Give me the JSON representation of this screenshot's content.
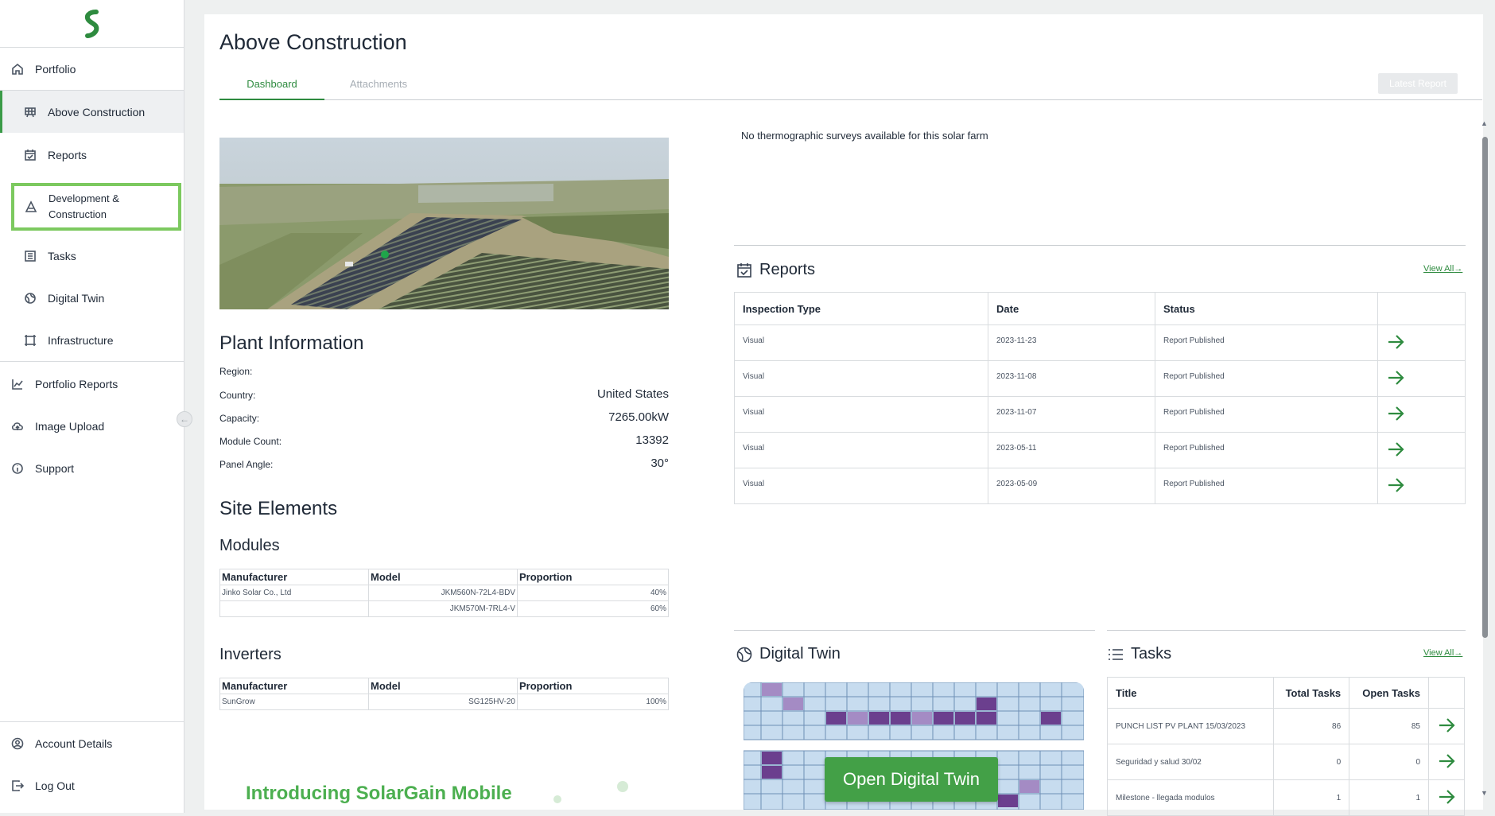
{
  "sidebar": {
    "items": [
      {
        "label": "Portfolio",
        "icon": "home-icon"
      },
      {
        "label": "Above Construction",
        "icon": "grid-panel-icon"
      },
      {
        "label": "Reports",
        "icon": "calendar-check-icon"
      },
      {
        "label": "Development & Construction",
        "icon": "cone-icon"
      },
      {
        "label": "Tasks",
        "icon": "list-icon"
      },
      {
        "label": "Digital Twin",
        "icon": "globe-icon"
      },
      {
        "label": "Infrastructure",
        "icon": "frame-icon"
      },
      {
        "label": "Portfolio Reports",
        "icon": "line-chart-icon"
      },
      {
        "label": "Image Upload",
        "icon": "cloud-upload-icon"
      },
      {
        "label": "Support",
        "icon": "info-icon"
      }
    ],
    "footer": [
      {
        "label": "Account Details",
        "icon": "user-circle-icon"
      },
      {
        "label": "Log Out",
        "icon": "logout-icon"
      }
    ]
  },
  "page": {
    "title": "Above Construction",
    "tabs": [
      "Dashboard",
      "Attachments"
    ],
    "latest_report_label": "Latest Report"
  },
  "plant_info": {
    "heading": "Plant Information",
    "rows": [
      {
        "label": "Region:",
        "value": ""
      },
      {
        "label": "Country:",
        "value": "United States"
      },
      {
        "label": "Capacity:",
        "value": "7265.00kW"
      },
      {
        "label": "Module Count:",
        "value": "13392"
      },
      {
        "label": "Panel Angle:",
        "value": "30°"
      }
    ]
  },
  "site_elements": {
    "heading": "Site Elements",
    "modules": {
      "heading": "Modules",
      "columns": [
        "Manufacturer",
        "Model",
        "Proportion"
      ],
      "rows": [
        [
          "Jinko Solar Co., Ltd",
          "JKM560N-72L4-BDV",
          "40%"
        ],
        [
          "",
          "JKM570M-7RL4-V",
          "60%"
        ]
      ]
    },
    "inverters": {
      "heading": "Inverters",
      "columns": [
        "Manufacturer",
        "Model",
        "Proportion"
      ],
      "rows": [
        [
          "SunGrow",
          "SG125HV-20",
          "100%"
        ]
      ]
    }
  },
  "promo": {
    "text": "Introducing SolarGain Mobile"
  },
  "thermo": {
    "message": "No thermographic surveys available for this solar farm"
  },
  "reports": {
    "heading": "Reports",
    "view_all": "View All",
    "columns": [
      "Inspection Type",
      "Date",
      "Status",
      ""
    ],
    "rows": [
      [
        "Visual",
        "2023-11-23",
        "Report Published"
      ],
      [
        "Visual",
        "2023-11-08",
        "Report Published"
      ],
      [
        "Visual",
        "2023-11-07",
        "Report Published"
      ],
      [
        "Visual",
        "2023-05-11",
        "Report Published"
      ],
      [
        "Visual",
        "2023-05-09",
        "Report Published"
      ]
    ]
  },
  "digital_twin": {
    "heading": "Digital Twin",
    "button": "Open Digital Twin"
  },
  "tasks": {
    "heading": "Tasks",
    "view_all": "View All",
    "columns": [
      "Title",
      "Total Tasks",
      "Open Tasks",
      ""
    ],
    "rows": [
      [
        "PUNCH LIST PV PLANT 15/03/2023",
        "86",
        "85"
      ],
      [
        "Seguridad y salud 30/02",
        "0",
        "0"
      ],
      [
        "Milestone - llegada modulos",
        "1",
        "1"
      ]
    ]
  },
  "colors": {
    "accent": "#2e8b3f",
    "highlight": "#7cc95f",
    "button": "#43a047",
    "twin_purple": "#6b3f8e",
    "twin_blue": "#c7dcef"
  }
}
